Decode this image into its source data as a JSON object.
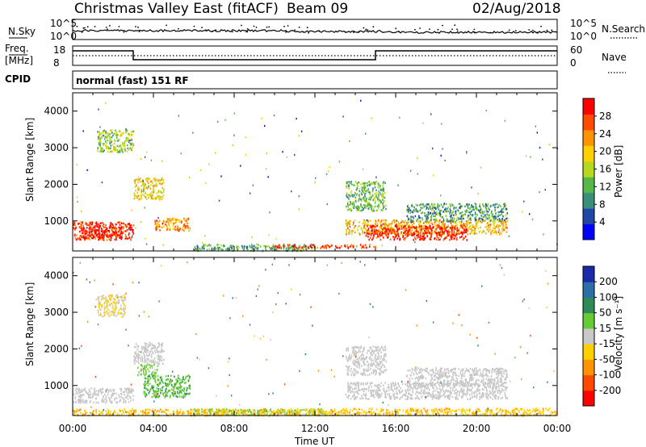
{
  "header": {
    "title": "Christmas Valley East (fitACF)",
    "beam": "Beam 09",
    "date": "02/Aug/2018"
  },
  "top_panels": {
    "nsky_label": "N.Sky",
    "nsearch_label": "N.Search",
    "noise_ticks_left": [
      "10^5",
      "10^0"
    ],
    "noise_ticks_right": [
      "10^5",
      "10^0"
    ],
    "freq_label_1": "Freq.",
    "freq_label_2": "[MHz]",
    "freq_ticks": [
      "18",
      "8"
    ],
    "nave_label": "Nave",
    "nave_ticks": [
      "60",
      "0"
    ],
    "cpid_label": "CPID",
    "cpid_text": "normal (fast) 151 RF"
  },
  "colorbars": {
    "power": {
      "label": "Power [dB]",
      "ticks": [
        "28",
        "24",
        "20",
        "16",
        "12",
        "8",
        "4"
      ],
      "colors": [
        "#0000ff",
        "#2046a8",
        "#3a8f7a",
        "#56b848",
        "#b8d820",
        "#ffd000",
        "#ff9400",
        "#ff4a00",
        "#ff0000"
      ]
    },
    "velocity": {
      "label": "Velocity [m s⁻¹]",
      "ticks": [
        "200",
        "100",
        "50",
        "15",
        "-15",
        "-50",
        "-100",
        "-200"
      ],
      "colors": [
        "#ff0000",
        "#ff4a00",
        "#ff9400",
        "#ffd000",
        "#c8c8c8",
        "#66cc33",
        "#2e8b57",
        "#2a6fa8",
        "#1a2aa8"
      ]
    }
  },
  "time_axis": {
    "label": "Time UT",
    "ticks": [
      "00:00",
      "04:00",
      "08:00",
      "12:00",
      "16:00",
      "20:00",
      "00:00"
    ]
  },
  "chart_data": [
    {
      "type": "heatmap",
      "title": "",
      "xlabel": "",
      "ylabel": "Slant Range [km]",
      "x_ticks": [
        "00:00",
        "04:00",
        "08:00",
        "12:00",
        "16:00",
        "20:00",
        "00:00"
      ],
      "xlim_hours": [
        0,
        24
      ],
      "ylim": [
        180,
        4500
      ],
      "y_ticks": [
        1000,
        2000,
        3000,
        4000
      ],
      "colorbar_label": "Power [dB]",
      "colorbar_ticks": [
        4,
        8,
        12,
        16,
        20,
        24,
        28
      ],
      "colorbar_range": [
        0,
        30
      ],
      "patches": [
        {
          "t0": 0.0,
          "t1": 3.0,
          "r0": 500,
          "r1": 1000,
          "value": 26
        },
        {
          "t0": 0.4,
          "t1": 2.4,
          "r0": 550,
          "r1": 850,
          "value": 29
        },
        {
          "t0": 1.2,
          "t1": 3.0,
          "r0": 2900,
          "r1": 3500,
          "value": 14
        },
        {
          "t0": 3.0,
          "t1": 4.5,
          "r0": 1600,
          "r1": 2200,
          "value": 18
        },
        {
          "t0": 4.0,
          "t1": 5.8,
          "r0": 750,
          "r1": 1100,
          "value": 22
        },
        {
          "t0": 6.0,
          "t1": 12.0,
          "r0": 200,
          "r1": 380,
          "value": 10
        },
        {
          "t0": 10.0,
          "t1": 15.0,
          "r0": 280,
          "r1": 380,
          "value": 26
        },
        {
          "t0": 13.5,
          "t1": 21.5,
          "r0": 650,
          "r1": 1050,
          "value": 20
        },
        {
          "t0": 14.5,
          "t1": 19.5,
          "r0": 500,
          "r1": 900,
          "value": 28
        },
        {
          "t0": 13.5,
          "t1": 15.5,
          "r0": 1300,
          "r1": 2100,
          "value": 12
        },
        {
          "t0": 16.5,
          "t1": 21.5,
          "r0": 1000,
          "r1": 1500,
          "value": 10
        }
      ]
    },
    {
      "type": "heatmap",
      "title": "",
      "xlabel": "Time UT",
      "ylabel": "Slant Range [km]",
      "x_ticks": [
        "00:00",
        "04:00",
        "08:00",
        "12:00",
        "16:00",
        "20:00",
        "00:00"
      ],
      "xlim_hours": [
        0,
        24
      ],
      "ylim": [
        180,
        4500
      ],
      "y_ticks": [
        1000,
        2000,
        3000,
        4000
      ],
      "colorbar_label": "Velocity [m s⁻¹]",
      "colorbar_ticks": [
        -200,
        -100,
        -50,
        -15,
        15,
        50,
        100,
        200
      ],
      "patches": [
        {
          "t0": 0.0,
          "t1": 3.0,
          "r0": 550,
          "r1": 950,
          "value": 0
        },
        {
          "t0": 1.2,
          "t1": 2.6,
          "r0": 2900,
          "r1": 3500,
          "value": -15
        },
        {
          "t0": 3.0,
          "t1": 4.5,
          "r0": 1600,
          "r1": 2200,
          "value": 0
        },
        {
          "t0": 3.5,
          "t1": 5.8,
          "r0": 700,
          "r1": 1300,
          "value": 40
        },
        {
          "t0": 3.2,
          "t1": 4.2,
          "r0": 1300,
          "r1": 1600,
          "value": 30
        },
        {
          "t0": 6.0,
          "t1": 12.5,
          "r0": 200,
          "r1": 380,
          "value": 30
        },
        {
          "t0": 0.0,
          "t1": 12.5,
          "r0": 200,
          "r1": 380,
          "value": -40
        },
        {
          "t0": 13.5,
          "t1": 21.5,
          "r0": 650,
          "r1": 1100,
          "value": 0
        },
        {
          "t0": 13.5,
          "t1": 15.5,
          "r0": 1300,
          "r1": 2100,
          "value": 0
        },
        {
          "t0": 16.5,
          "t1": 21.5,
          "r0": 1000,
          "r1": 1500,
          "value": 0
        },
        {
          "t0": 12.5,
          "t1": 24.0,
          "r0": 200,
          "r1": 400,
          "value": -40
        }
      ]
    }
  ]
}
